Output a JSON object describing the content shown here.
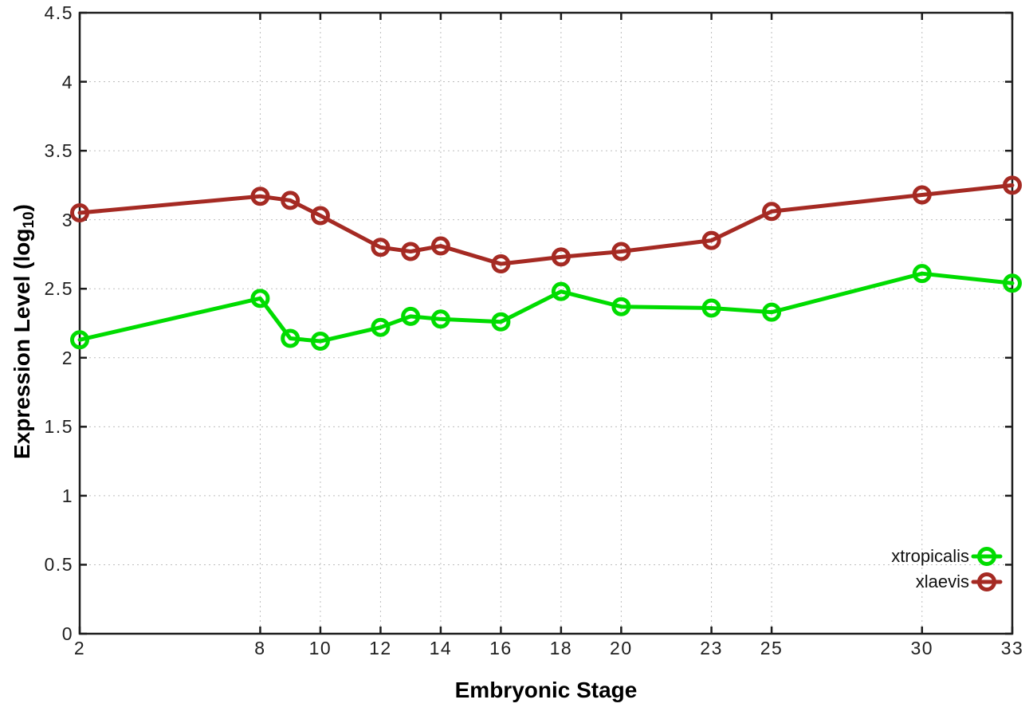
{
  "axes": {
    "x_title": "Embryonic Stage",
    "y_title_prefix": "Expression Level (log",
    "y_title_sub": "10",
    "y_title_suffix": ")",
    "x_tick_labels": [
      "2",
      "8",
      "10",
      "12",
      "14",
      "16",
      "18",
      "20",
      "23",
      "25",
      "30",
      "33"
    ],
    "y_tick_labels": [
      "0",
      "0.5",
      "1",
      "1.5",
      "2",
      "2.5",
      "3",
      "3.5",
      "4",
      "4.5"
    ]
  },
  "legend": {
    "position": "bottom-right",
    "entries": [
      {
        "label": "xtropicalis",
        "color": "#00DC00"
      },
      {
        "label": "xlaevis",
        "color": "#A52A23"
      }
    ]
  },
  "chart_data": {
    "type": "line",
    "title": "",
    "xlabel": "Embryonic Stage",
    "ylabel": "Expression Level (log10)",
    "xlim": [
      2,
      33
    ],
    "ylim": [
      0,
      4.5
    ],
    "grid": true,
    "x_ticks": [
      2,
      8,
      10,
      12,
      14,
      16,
      18,
      20,
      23,
      25,
      30,
      33
    ],
    "y_ticks": [
      0,
      0.5,
      1,
      1.5,
      2,
      2.5,
      3,
      3.5,
      4,
      4.5
    ],
    "x": [
      2,
      8,
      9,
      10,
      12,
      13,
      14,
      16,
      18,
      20,
      23,
      25,
      30,
      33
    ],
    "series": [
      {
        "name": "xtropicalis",
        "color": "#00DC00",
        "values": [
          2.13,
          2.43,
          2.14,
          2.12,
          2.22,
          2.3,
          2.28,
          2.26,
          2.48,
          2.37,
          2.36,
          2.33,
          2.61,
          2.54
        ]
      },
      {
        "name": "xlaevis",
        "color": "#A52A23",
        "values": [
          3.05,
          3.17,
          3.14,
          3.03,
          2.8,
          2.77,
          2.81,
          2.68,
          2.73,
          2.77,
          2.85,
          3.06,
          3.18,
          3.25
        ]
      }
    ]
  },
  "style": {
    "grid_color": "#bdbdbd",
    "border_color": "#1c1c1c",
    "background": "#ffffff"
  }
}
